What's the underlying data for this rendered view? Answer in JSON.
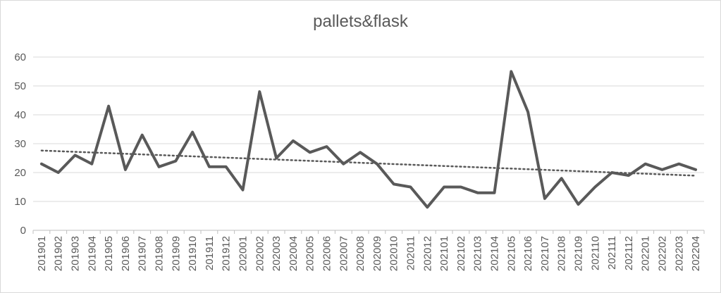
{
  "chart_data": {
    "type": "line",
    "title": "pallets&flask",
    "xlabel": "",
    "ylabel": "",
    "ylim": [
      0,
      60
    ],
    "yticks": [
      0,
      10,
      20,
      30,
      40,
      50,
      60
    ],
    "grid": true,
    "legend": "none",
    "categories": [
      "201901",
      "201902",
      "201903",
      "201904",
      "201905",
      "201906",
      "201907",
      "201908",
      "201909",
      "201910",
      "201911",
      "201912",
      "202001",
      "202002",
      "202003",
      "202004",
      "202005",
      "202006",
      "202007",
      "202008",
      "202009",
      "202010",
      "202011",
      "202012",
      "202101",
      "202102",
      "202103",
      "202104",
      "202105",
      "202106",
      "202107",
      "202108",
      "202109",
      "202110",
      "202111",
      "202112",
      "202201",
      "202202",
      "202203",
      "202204"
    ],
    "series": [
      {
        "values": [
          23,
          20,
          26,
          23,
          43,
          21,
          33,
          22,
          24,
          34,
          22,
          22,
          14,
          48,
          25,
          31,
          27,
          29,
          23,
          27,
          23,
          16,
          15,
          8,
          15,
          15,
          13,
          13,
          55,
          41,
          11,
          18,
          9,
          15,
          20,
          19,
          23,
          21,
          23,
          21
        ],
        "color": "#595959"
      }
    ],
    "trendline": {
      "type": "linear",
      "style": "dotted",
      "color": "#595959"
    }
  }
}
